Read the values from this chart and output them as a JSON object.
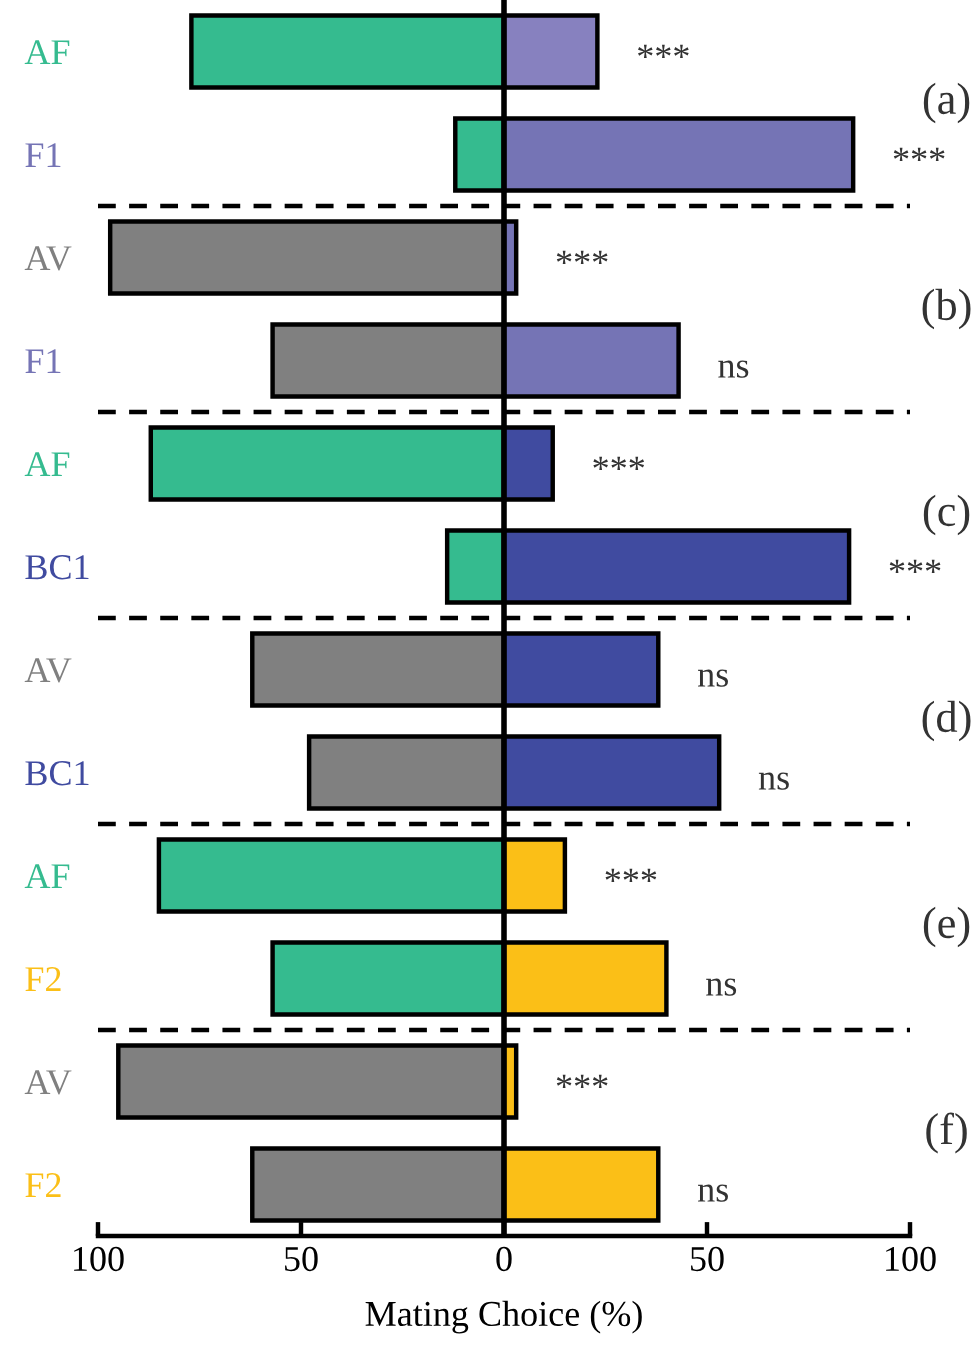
{
  "chart_data": [
    {
      "type": "bar",
      "stacked": true,
      "orientation": "horizontal",
      "categories": [
        "AF",
        "F1"
      ],
      "tick_labels": "y",
      "xlim": [
        -100,
        100
      ],
      "series": [
        {
          "colors": [
            "#35bb8f",
            "#35bb8f"
          ],
          "values": [
            -77,
            -12
          ]
        },
        {
          "colors": [
            "#8781bf",
            "#7574b5"
          ],
          "values": [
            23,
            86
          ]
        }
      ],
      "annotations": [
        "***",
        "***",
        "(a)"
      ]
    },
    {
      "type": "bar",
      "stacked": true,
      "orientation": "horizontal",
      "categories": [
        "AV",
        "F1"
      ],
      "tick_labels": "y",
      "xlim": [
        -100,
        100
      ],
      "series": [
        {
          "colors": [
            "#808080",
            "#808080"
          ],
          "values": [
            -97,
            -57
          ]
        },
        {
          "colors": [
            "#7574b5",
            "#7574b5"
          ],
          "values": [
            3,
            43
          ]
        }
      ],
      "annotations": [
        "***",
        "ns",
        "(b)"
      ]
    },
    {
      "type": "bar",
      "stacked": true,
      "orientation": "horizontal",
      "categories": [
        "AF",
        "BC1"
      ],
      "tick_labels": "y",
      "xlim": [
        -100,
        100
      ],
      "series": [
        {
          "colors": [
            "#35bb8f",
            "#35bb8f"
          ],
          "values": [
            -87,
            -14
          ]
        },
        {
          "colors": [
            "#404ba0",
            "#404ba0"
          ],
          "values": [
            12,
            85
          ]
        }
      ],
      "annotations": [
        "***",
        "***",
        "(c)"
      ]
    },
    {
      "type": "bar",
      "stacked": true,
      "orientation": "horizontal",
      "categories": [
        "AV",
        "BC1"
      ],
      "tick_labels": "y",
      "xlim": [
        -100,
        100
      ],
      "series": [
        {
          "colors": [
            "#808080",
            "#808080"
          ],
          "values": [
            -62,
            -48
          ]
        },
        {
          "colors": [
            "#404ba0",
            "#404ba0"
          ],
          "values": [
            38,
            53
          ]
        }
      ],
      "annotations": [
        "ns",
        "ns",
        "(d)"
      ]
    },
    {
      "type": "bar",
      "stacked": true,
      "orientation": "horizontal",
      "categories": [
        "AF",
        "F2"
      ],
      "tick_labels": "y",
      "xlim": [
        -100,
        100
      ],
      "series": [
        {
          "colors": [
            "#35bb8f",
            "#35bb8f"
          ],
          "values": [
            -85,
            -57
          ]
        },
        {
          "colors": [
            "#fbbf17",
            "#fbbf17"
          ],
          "values": [
            15,
            40
          ]
        }
      ],
      "annotations": [
        "***",
        "ns",
        "(e)"
      ]
    },
    {
      "type": "bar",
      "stacked": true,
      "orientation": "horizontal",
      "categories": [
        "AV",
        "F2"
      ],
      "xlim": [
        -100,
        100
      ],
      "xticks": [
        {
          "value": -100,
          "label": "100"
        },
        {
          "value": -50,
          "label": "50"
        },
        0,
        50,
        100
      ],
      "xlabel": "Mating Choice (%)",
      "series": [
        {
          "colors": [
            "#808080",
            "#808080"
          ],
          "values": [
            -95,
            -62
          ]
        },
        {
          "colors": [
            "#fbbf17",
            "#fbbf17"
          ],
          "values": [
            3,
            38
          ]
        }
      ],
      "annotations": [
        "***",
        "ns",
        "(f)"
      ]
    }
  ]
}
